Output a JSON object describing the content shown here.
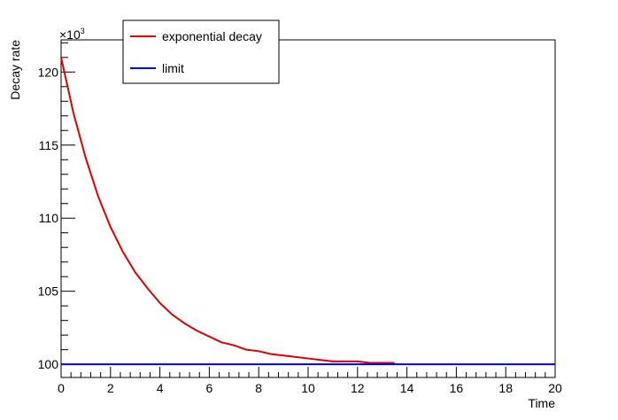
{
  "chart_data": {
    "type": "line",
    "title": "",
    "xlabel": "Time",
    "ylabel": "Decay rate",
    "y_multiplier_label": "×10",
    "y_multiplier_exp": "3",
    "xlim": [
      0,
      20
    ],
    "ylim": [
      99.1,
      122.2
    ],
    "x_ticks": [
      0,
      2,
      4,
      6,
      8,
      10,
      12,
      14,
      16,
      18,
      20
    ],
    "x_tick_labels": [
      "0",
      "2",
      "4",
      "6",
      "8",
      "10",
      "12",
      "14",
      "16",
      "18",
      "20"
    ],
    "y_ticks": [
      100,
      105,
      110,
      115,
      120
    ],
    "y_tick_labels": [
      "100",
      "105",
      "110",
      "115",
      "120"
    ],
    "grid": false,
    "legend_position": "top-left",
    "series": [
      {
        "name": "exponential decay",
        "color": "#dd0000",
        "x": [
          0.0,
          0.5,
          1.0,
          1.5,
          2.0,
          2.5,
          3.0,
          3.5,
          4.0,
          4.5,
          5.0,
          5.5,
          6.0,
          6.5,
          7.0,
          7.5,
          8.0,
          8.5,
          9.0,
          9.5,
          10.0,
          10.5,
          11.0,
          11.5,
          12.0,
          12.5,
          13.0,
          13.5
        ],
        "y": [
          121.0,
          117.2,
          114.1,
          111.5,
          109.4,
          107.7,
          106.3,
          105.2,
          104.2,
          103.4,
          102.8,
          102.3,
          101.9,
          101.5,
          101.3,
          101.0,
          100.9,
          100.7,
          100.6,
          100.5,
          100.4,
          100.3,
          100.2,
          100.2,
          100.2,
          100.1,
          100.1,
          100.1
        ]
      },
      {
        "name": "limit",
        "color": "#0000dd",
        "x": [
          0,
          20
        ],
        "y": [
          100.0,
          100.0
        ]
      }
    ]
  }
}
